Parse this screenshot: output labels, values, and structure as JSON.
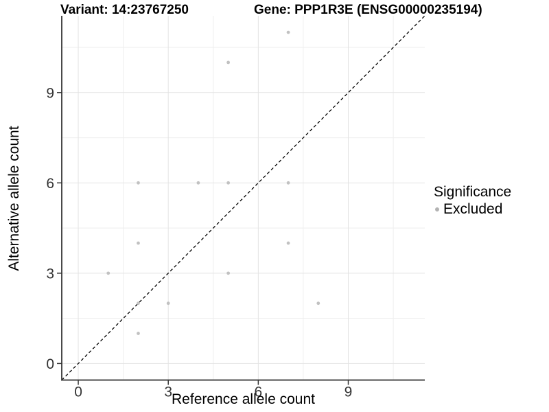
{
  "chart_data": {
    "type": "scatter",
    "title_left": "Variant: 14:23767250",
    "title_right": "Gene: PPP1R3E (ENSG00000235194)",
    "xlabel": "Reference allele count",
    "ylabel": "Alternative allele count",
    "x_breaks": [
      0,
      3,
      6,
      9
    ],
    "y_breaks": [
      0,
      3,
      6,
      9
    ],
    "x_minor_breaks": [
      1.5,
      4.5,
      7.5,
      10.5
    ],
    "y_minor_breaks": [
      1.5,
      4.5,
      7.5,
      10.5
    ],
    "xlim": [
      -0.55,
      11.55
    ],
    "ylim": [
      -0.55,
      11.55
    ],
    "grid": true,
    "points": [
      {
        "x": 1,
        "y": 3
      },
      {
        "x": 2,
        "y": 1
      },
      {
        "x": 2,
        "y": 2
      },
      {
        "x": 2,
        "y": 4
      },
      {
        "x": 2,
        "y": 6
      },
      {
        "x": 3,
        "y": 2
      },
      {
        "x": 4,
        "y": 6
      },
      {
        "x": 5,
        "y": 3
      },
      {
        "x": 5,
        "y": 6
      },
      {
        "x": 5,
        "y": 10
      },
      {
        "x": 7,
        "y": 4
      },
      {
        "x": 7,
        "y": 6
      },
      {
        "x": 7,
        "y": 11
      },
      {
        "x": 8,
        "y": 2
      }
    ],
    "identity_line": {
      "style": "dashed",
      "color": "#000000",
      "from": [
        -0.55,
        -0.55
      ],
      "to": [
        11.55,
        11.55
      ]
    },
    "legend": {
      "title": "Significance",
      "position": "right",
      "items": [
        {
          "label": "Excluded",
          "color": "#b3b3b3"
        }
      ]
    },
    "colors": {
      "point": "#c1c1c1",
      "grid_major": "#e3e3e3",
      "grid_minor": "#eeeeee",
      "axis_line": "#4a4a4a",
      "tick": "#333333",
      "tick_text": "#333333",
      "background": "#ffffff"
    }
  }
}
